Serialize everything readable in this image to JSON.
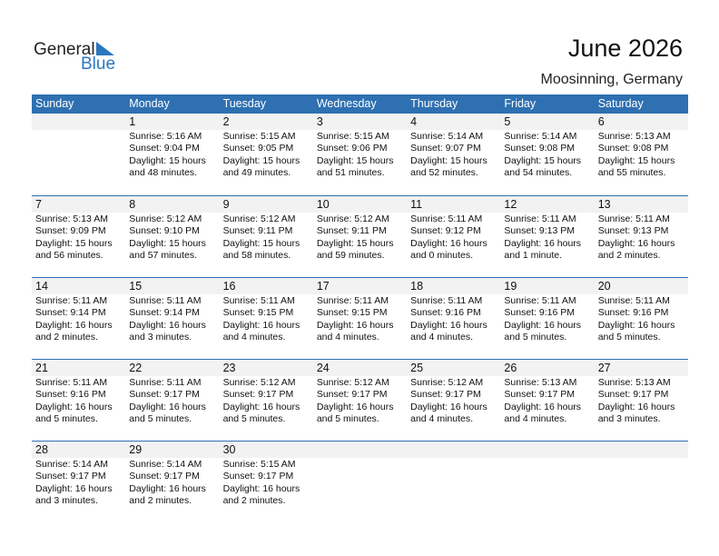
{
  "logo": {
    "line1": "General",
    "line2": "Blue",
    "color": "#2a77c0"
  },
  "title": "June 2026",
  "location": "Moosinning, Germany",
  "weekdays": [
    "Sunday",
    "Monday",
    "Tuesday",
    "Wednesday",
    "Thursday",
    "Friday",
    "Saturday"
  ],
  "colors": {
    "header": "#2e70b1",
    "date_row": "#f2f2f2"
  },
  "weeks": [
    [
      null,
      {
        "day": "1",
        "sunrise": "Sunrise: 5:16 AM",
        "sunset": "Sunset: 9:04 PM",
        "daylight1": "Daylight: 15 hours",
        "daylight2": "and 48 minutes."
      },
      {
        "day": "2",
        "sunrise": "Sunrise: 5:15 AM",
        "sunset": "Sunset: 9:05 PM",
        "daylight1": "Daylight: 15 hours",
        "daylight2": "and 49 minutes."
      },
      {
        "day": "3",
        "sunrise": "Sunrise: 5:15 AM",
        "sunset": "Sunset: 9:06 PM",
        "daylight1": "Daylight: 15 hours",
        "daylight2": "and 51 minutes."
      },
      {
        "day": "4",
        "sunrise": "Sunrise: 5:14 AM",
        "sunset": "Sunset: 9:07 PM",
        "daylight1": "Daylight: 15 hours",
        "daylight2": "and 52 minutes."
      },
      {
        "day": "5",
        "sunrise": "Sunrise: 5:14 AM",
        "sunset": "Sunset: 9:08 PM",
        "daylight1": "Daylight: 15 hours",
        "daylight2": "and 54 minutes."
      },
      {
        "day": "6",
        "sunrise": "Sunrise: 5:13 AM",
        "sunset": "Sunset: 9:08 PM",
        "daylight1": "Daylight: 15 hours",
        "daylight2": "and 55 minutes."
      }
    ],
    [
      {
        "day": "7",
        "sunrise": "Sunrise: 5:13 AM",
        "sunset": "Sunset: 9:09 PM",
        "daylight1": "Daylight: 15 hours",
        "daylight2": "and 56 minutes."
      },
      {
        "day": "8",
        "sunrise": "Sunrise: 5:12 AM",
        "sunset": "Sunset: 9:10 PM",
        "daylight1": "Daylight: 15 hours",
        "daylight2": "and 57 minutes."
      },
      {
        "day": "9",
        "sunrise": "Sunrise: 5:12 AM",
        "sunset": "Sunset: 9:11 PM",
        "daylight1": "Daylight: 15 hours",
        "daylight2": "and 58 minutes."
      },
      {
        "day": "10",
        "sunrise": "Sunrise: 5:12 AM",
        "sunset": "Sunset: 9:11 PM",
        "daylight1": "Daylight: 15 hours",
        "daylight2": "and 59 minutes."
      },
      {
        "day": "11",
        "sunrise": "Sunrise: 5:11 AM",
        "sunset": "Sunset: 9:12 PM",
        "daylight1": "Daylight: 16 hours",
        "daylight2": "and 0 minutes."
      },
      {
        "day": "12",
        "sunrise": "Sunrise: 5:11 AM",
        "sunset": "Sunset: 9:13 PM",
        "daylight1": "Daylight: 16 hours",
        "daylight2": "and 1 minute."
      },
      {
        "day": "13",
        "sunrise": "Sunrise: 5:11 AM",
        "sunset": "Sunset: 9:13 PM",
        "daylight1": "Daylight: 16 hours",
        "daylight2": "and 2 minutes."
      }
    ],
    [
      {
        "day": "14",
        "sunrise": "Sunrise: 5:11 AM",
        "sunset": "Sunset: 9:14 PM",
        "daylight1": "Daylight: 16 hours",
        "daylight2": "and 2 minutes."
      },
      {
        "day": "15",
        "sunrise": "Sunrise: 5:11 AM",
        "sunset": "Sunset: 9:14 PM",
        "daylight1": "Daylight: 16 hours",
        "daylight2": "and 3 minutes."
      },
      {
        "day": "16",
        "sunrise": "Sunrise: 5:11 AM",
        "sunset": "Sunset: 9:15 PM",
        "daylight1": "Daylight: 16 hours",
        "daylight2": "and 4 minutes."
      },
      {
        "day": "17",
        "sunrise": "Sunrise: 5:11 AM",
        "sunset": "Sunset: 9:15 PM",
        "daylight1": "Daylight: 16 hours",
        "daylight2": "and 4 minutes."
      },
      {
        "day": "18",
        "sunrise": "Sunrise: 5:11 AM",
        "sunset": "Sunset: 9:16 PM",
        "daylight1": "Daylight: 16 hours",
        "daylight2": "and 4 minutes."
      },
      {
        "day": "19",
        "sunrise": "Sunrise: 5:11 AM",
        "sunset": "Sunset: 9:16 PM",
        "daylight1": "Daylight: 16 hours",
        "daylight2": "and 5 minutes."
      },
      {
        "day": "20",
        "sunrise": "Sunrise: 5:11 AM",
        "sunset": "Sunset: 9:16 PM",
        "daylight1": "Daylight: 16 hours",
        "daylight2": "and 5 minutes."
      }
    ],
    [
      {
        "day": "21",
        "sunrise": "Sunrise: 5:11 AM",
        "sunset": "Sunset: 9:16 PM",
        "daylight1": "Daylight: 16 hours",
        "daylight2": "and 5 minutes."
      },
      {
        "day": "22",
        "sunrise": "Sunrise: 5:11 AM",
        "sunset": "Sunset: 9:17 PM",
        "daylight1": "Daylight: 16 hours",
        "daylight2": "and 5 minutes."
      },
      {
        "day": "23",
        "sunrise": "Sunrise: 5:12 AM",
        "sunset": "Sunset: 9:17 PM",
        "daylight1": "Daylight: 16 hours",
        "daylight2": "and 5 minutes."
      },
      {
        "day": "24",
        "sunrise": "Sunrise: 5:12 AM",
        "sunset": "Sunset: 9:17 PM",
        "daylight1": "Daylight: 16 hours",
        "daylight2": "and 5 minutes."
      },
      {
        "day": "25",
        "sunrise": "Sunrise: 5:12 AM",
        "sunset": "Sunset: 9:17 PM",
        "daylight1": "Daylight: 16 hours",
        "daylight2": "and 4 minutes."
      },
      {
        "day": "26",
        "sunrise": "Sunrise: 5:13 AM",
        "sunset": "Sunset: 9:17 PM",
        "daylight1": "Daylight: 16 hours",
        "daylight2": "and 4 minutes."
      },
      {
        "day": "27",
        "sunrise": "Sunrise: 5:13 AM",
        "sunset": "Sunset: 9:17 PM",
        "daylight1": "Daylight: 16 hours",
        "daylight2": "and 3 minutes."
      }
    ],
    [
      {
        "day": "28",
        "sunrise": "Sunrise: 5:14 AM",
        "sunset": "Sunset: 9:17 PM",
        "daylight1": "Daylight: 16 hours",
        "daylight2": "and 3 minutes."
      },
      {
        "day": "29",
        "sunrise": "Sunrise: 5:14 AM",
        "sunset": "Sunset: 9:17 PM",
        "daylight1": "Daylight: 16 hours",
        "daylight2": "and 2 minutes."
      },
      {
        "day": "30",
        "sunrise": "Sunrise: 5:15 AM",
        "sunset": "Sunset: 9:17 PM",
        "daylight1": "Daylight: 16 hours",
        "daylight2": "and 2 minutes."
      },
      null,
      null,
      null,
      null
    ]
  ]
}
